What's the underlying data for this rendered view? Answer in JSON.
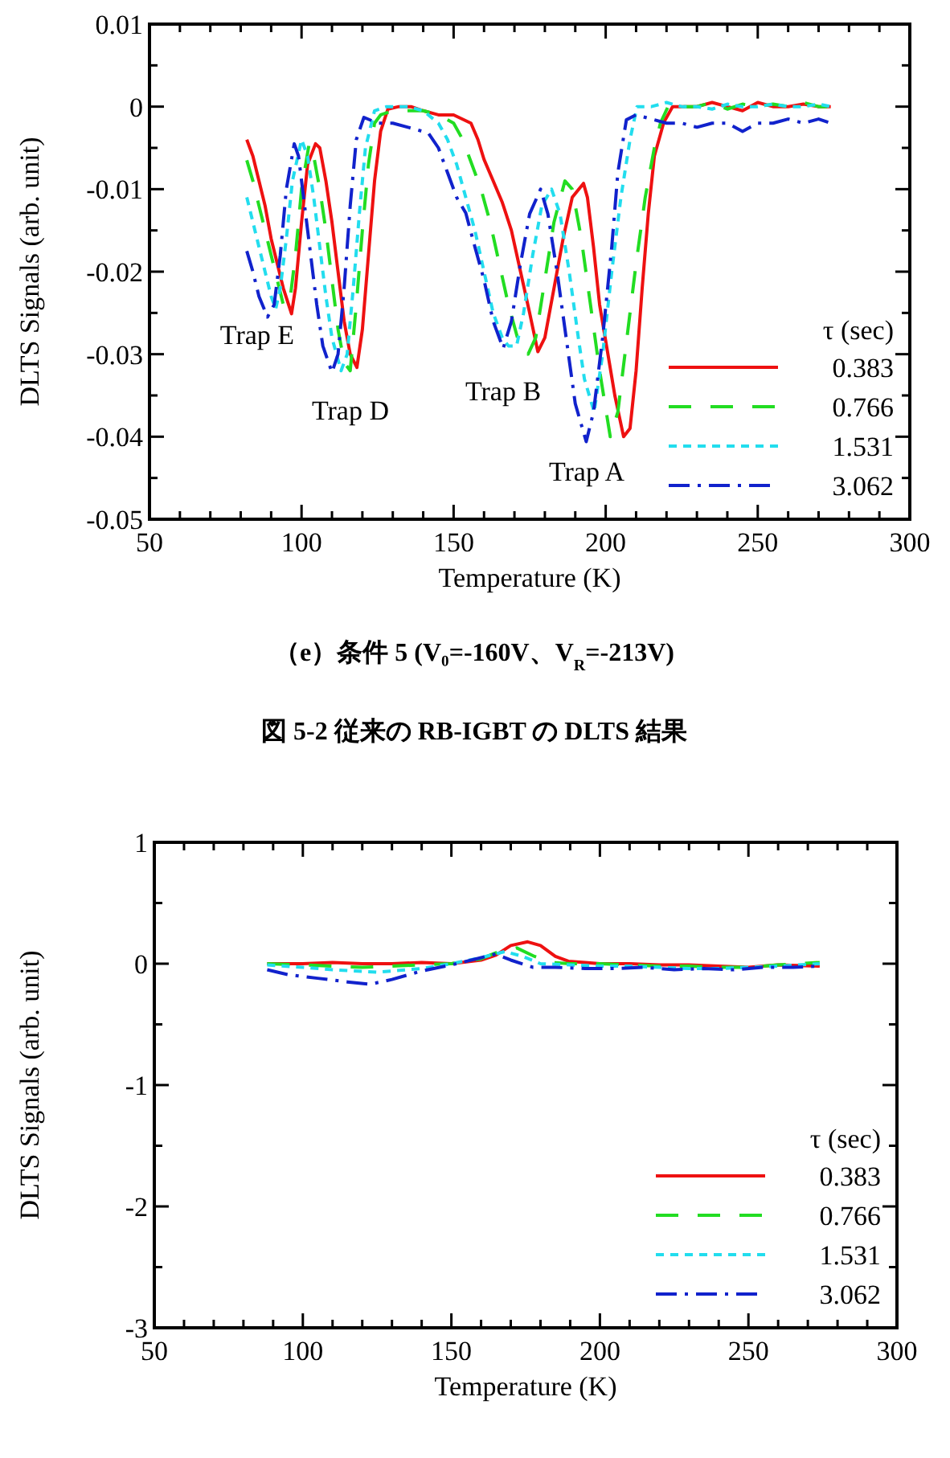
{
  "chart_data": [
    {
      "type": "line",
      "xlabel": "Temperature (K)",
      "ylabel": "DLTS Signals (arb. unit)",
      "legend_title": "τ (sec)",
      "legend": "bottom right",
      "xlim": [
        50,
        300
      ],
      "ylim": [
        -0.05,
        0.01
      ],
      "xticks": [
        50,
        {
          "value": 60,
          "label": null
        },
        {
          "value": 70,
          "label": null
        },
        {
          "value": 80,
          "label": null
        },
        {
          "value": 90,
          "label": null
        },
        100,
        {
          "value": 110,
          "label": null
        },
        {
          "value": 120,
          "label": null
        },
        {
          "value": 130,
          "label": null
        },
        {
          "value": 140,
          "label": null
        },
        150,
        {
          "value": 160,
          "label": null
        },
        {
          "value": 170,
          "label": null
        },
        {
          "value": 180,
          "label": null
        },
        {
          "value": 190,
          "label": null
        },
        200,
        {
          "value": 210,
          "label": null
        },
        {
          "value": 220,
          "label": null
        },
        {
          "value": 230,
          "label": null
        },
        {
          "value": 240,
          "label": null
        },
        250,
        {
          "value": 260,
          "label": null
        },
        {
          "value": 270,
          "label": null
        },
        {
          "value": 280,
          "label": null
        },
        {
          "value": 290,
          "label": null
        },
        300
      ],
      "yticks": [
        -0.05,
        {
          "value": -0.045,
          "label": null
        },
        -0.04,
        {
          "value": -0.035,
          "label": null
        },
        -0.03,
        {
          "value": -0.025,
          "label": null
        },
        -0.02,
        {
          "value": -0.015,
          "label": null
        },
        -0.01,
        {
          "value": -0.005,
          "label": null
        },
        0,
        {
          "value": 0.005,
          "label": null
        },
        0.01
      ],
      "annotations": [
        "Trap E",
        "Trap D",
        "Trap B",
        "Trap A",
        "（e）条件 5 (V₀=-160V、V$_{R}$=-213V)",
        "図 5-2 従来の RB-IGBT の DLTS 結果"
      ],
      "series": [
        {
          "name": "0.383",
          "color": "#ee1111",
          "line_style": "solid",
          "x": [
            82,
            84,
            86,
            88,
            90,
            92,
            94,
            96.7,
            98,
            100,
            102,
            104.6,
            106,
            108,
            110,
            112,
            114,
            116,
            118.2,
            120,
            122,
            124,
            126,
            128.4,
            132,
            136,
            140,
            145,
            150,
            155.7,
            158,
            160,
            163,
            166,
            169,
            172,
            175,
            177.7,
            180,
            183,
            186,
            189,
            192.7,
            194,
            196,
            198,
            200.6,
            203,
            205.9,
            208,
            210,
            212,
            214,
            216,
            219.1,
            222,
            226,
            230,
            235,
            240,
            245,
            250,
            255,
            260,
            265,
            270,
            274
          ],
          "values": [
            -0.004,
            -0.006,
            -0.009,
            -0.012,
            -0.016,
            -0.019,
            -0.022,
            -0.0251,
            -0.022,
            -0.014,
            -0.007,
            -0.0045,
            -0.005,
            -0.009,
            -0.014,
            -0.02,
            -0.026,
            -0.03,
            -0.0316,
            -0.027,
            -0.018,
            -0.009,
            -0.003,
            -0.0003,
            0,
            0,
            -0.0005,
            -0.001,
            -0.001,
            -0.002,
            -0.004,
            -0.0064,
            -0.009,
            -0.0116,
            -0.015,
            -0.02,
            -0.025,
            -0.0297,
            -0.028,
            -0.022,
            -0.016,
            -0.011,
            -0.0093,
            -0.011,
            -0.017,
            -0.024,
            -0.0297,
            -0.035,
            -0.04,
            -0.039,
            -0.032,
            -0.022,
            -0.013,
            -0.006,
            -0.0019,
            0,
            0,
            0,
            0.0005,
            0,
            -0.0005,
            0.0005,
            0,
            0,
            0.0003,
            0,
            0
          ]
        },
        {
          "name": "0.766",
          "color": "#22dd22",
          "line_style": "dashed",
          "x": [
            82,
            84,
            86,
            88,
            90,
            92,
            94,
            96,
            98,
            100,
            102.5,
            104,
            106,
            108,
            110,
            112,
            114,
            116,
            118,
            120,
            122,
            124,
            126,
            130,
            135,
            140,
            145,
            150,
            153,
            156,
            159,
            162,
            165,
            168,
            171,
            174.5,
            177,
            180,
            183,
            186.6,
            189,
            192,
            195,
            198,
            201.5,
            204,
            207,
            210,
            213,
            216,
            218,
            221,
            225,
            230,
            235,
            240,
            245,
            250,
            255,
            260,
            265,
            270,
            274
          ],
          "values": [
            -0.0065,
            -0.009,
            -0.012,
            -0.015,
            -0.018,
            -0.021,
            -0.024,
            -0.024,
            -0.018,
            -0.01,
            -0.0045,
            -0.006,
            -0.01,
            -0.015,
            -0.021,
            -0.027,
            -0.031,
            -0.032,
            -0.024,
            -0.015,
            -0.007,
            -0.002,
            -0.001,
            -0.0005,
            -0.0005,
            -0.0005,
            -0.001,
            -0.002,
            -0.004,
            -0.007,
            -0.01,
            -0.014,
            -0.019,
            -0.024,
            -0.028,
            -0.03,
            -0.028,
            -0.021,
            -0.014,
            -0.009,
            -0.01,
            -0.016,
            -0.024,
            -0.032,
            -0.04,
            -0.037,
            -0.028,
            -0.019,
            -0.011,
            -0.005,
            -0.002,
            0.0004,
            0,
            0,
            0.0005,
            -0.0003,
            0.0003,
            0,
            0.0003,
            0,
            0.0005,
            0,
            0
          ]
        },
        {
          "name": "1.531",
          "color": "#22ddee",
          "line_style": "dotted",
          "x": [
            82,
            84,
            86,
            88,
            90,
            91.5,
            93,
            95,
            97,
            100,
            102,
            104,
            106,
            108,
            110,
            113,
            115,
            117,
            119,
            121,
            124,
            128,
            135,
            140,
            145,
            148,
            151,
            154,
            157,
            160,
            163,
            166,
            168,
            170.7,
            173,
            176,
            179,
            182.2,
            185,
            188,
            191,
            193,
            196.2,
            199,
            202,
            205,
            208,
            210.3,
            215,
            220,
            225,
            230,
            235,
            240,
            245,
            250,
            255,
            260,
            265,
            270,
            274
          ],
          "values": [
            -0.011,
            -0.014,
            -0.017,
            -0.02,
            -0.023,
            -0.0245,
            -0.022,
            -0.016,
            -0.009,
            -0.004,
            -0.006,
            -0.011,
            -0.017,
            -0.023,
            -0.028,
            -0.032,
            -0.03,
            -0.022,
            -0.013,
            -0.005,
            -0.0005,
            0,
            0,
            -0.0005,
            -0.002,
            -0.004,
            -0.007,
            -0.011,
            -0.015,
            -0.02,
            -0.025,
            -0.028,
            -0.029,
            -0.029,
            -0.025,
            -0.018,
            -0.012,
            -0.01,
            -0.013,
            -0.02,
            -0.028,
            -0.033,
            -0.037,
            -0.03,
            -0.02,
            -0.011,
            -0.004,
            0,
            0,
            0.0005,
            0,
            0,
            -0.0003,
            0.0003,
            0,
            0,
            0.0003,
            0,
            0,
            0.0003,
            0
          ]
        },
        {
          "name": "3.062",
          "color": "#1122cc",
          "line_style": "dashdot",
          "x": [
            82,
            84,
            86,
            88.8,
            91,
            93,
            95,
            97.6,
            99,
            101,
            103,
            105,
            107,
            110,
            112,
            114,
            116,
            118,
            120.5,
            125,
            130,
            135,
            141.7,
            145,
            148,
            151,
            154,
            157,
            160,
            163,
            166.3,
            169,
            172,
            175,
            178.6,
            181,
            184,
            187,
            190,
            193.6,
            196,
            199,
            202,
            204,
            206.8,
            210,
            215,
            220,
            225,
            230,
            235,
            240,
            245,
            250,
            255,
            260,
            265,
            270,
            274
          ],
          "values": [
            -0.0175,
            -0.02,
            -0.023,
            -0.0255,
            -0.024,
            -0.018,
            -0.01,
            -0.0045,
            -0.006,
            -0.012,
            -0.018,
            -0.024,
            -0.029,
            -0.0322,
            -0.03,
            -0.022,
            -0.012,
            -0.004,
            -0.0013,
            -0.002,
            -0.002,
            -0.0025,
            -0.0032,
            -0.005,
            -0.008,
            -0.011,
            -0.0129,
            -0.017,
            -0.021,
            -0.026,
            -0.0293,
            -0.026,
            -0.019,
            -0.013,
            -0.01,
            -0.013,
            -0.02,
            -0.028,
            -0.036,
            -0.0406,
            -0.037,
            -0.028,
            -0.017,
            -0.008,
            -0.0016,
            -0.001,
            -0.0015,
            -0.002,
            -0.002,
            -0.0025,
            -0.002,
            -0.002,
            -0.003,
            -0.002,
            -0.002,
            -0.0015,
            -0.002,
            -0.0015,
            -0.002
          ]
        }
      ]
    },
    {
      "type": "line",
      "xlabel": "Temperature (K)",
      "ylabel": "DLTS Signals (arb. unit)",
      "legend_title": "τ (sec)",
      "legend": "bottom right",
      "xlim": [
        50,
        300
      ],
      "ylim": [
        -3,
        1
      ],
      "xticks": [
        50,
        {
          "value": 60,
          "label": null
        },
        {
          "value": 70,
          "label": null
        },
        {
          "value": 80,
          "label": null
        },
        {
          "value": 90,
          "label": null
        },
        100,
        {
          "value": 110,
          "label": null
        },
        {
          "value": 120,
          "label": null
        },
        {
          "value": 130,
          "label": null
        },
        {
          "value": 140,
          "label": null
        },
        150,
        {
          "value": 160,
          "label": null
        },
        {
          "value": 170,
          "label": null
        },
        {
          "value": 180,
          "label": null
        },
        {
          "value": 190,
          "label": null
        },
        200,
        {
          "value": 210,
          "label": null
        },
        {
          "value": 220,
          "label": null
        },
        {
          "value": 230,
          "label": null
        },
        {
          "value": 240,
          "label": null
        },
        250,
        {
          "value": 260,
          "label": null
        },
        {
          "value": 270,
          "label": null
        },
        {
          "value": 280,
          "label": null
        },
        {
          "value": 290,
          "label": null
        },
        300
      ],
      "yticks": [
        -3,
        {
          "value": -2.5,
          "label": null
        },
        -2,
        {
          "value": -1.5,
          "label": null
        },
        -1,
        {
          "value": -0.5,
          "label": null
        },
        0,
        {
          "value": 0.5,
          "label": null
        },
        1
      ],
      "series": [
        {
          "name": "0.383",
          "color": "#ee1111",
          "line_style": "solid",
          "x": [
            88,
            100,
            110,
            120,
            130,
            140,
            150,
            160,
            165,
            170,
            175.7,
            180,
            185,
            189.4,
            195,
            200,
            210,
            220,
            230,
            240,
            250,
            260,
            274
          ],
          "values": [
            0,
            0,
            0.01,
            0,
            0,
            0.01,
            0,
            0.03,
            0.07,
            0.15,
            0.18,
            0.15,
            0.06,
            0.02,
            0.01,
            0,
            0,
            -0.01,
            -0.01,
            -0.02,
            -0.03,
            -0.01,
            -0.02
          ]
        },
        {
          "name": "0.766",
          "color": "#22dd22",
          "line_style": "dashed",
          "x": [
            88,
            100,
            110,
            120,
            130,
            140,
            150,
            160,
            165,
            172,
            178,
            184,
            190,
            200,
            210,
            220,
            230,
            240,
            250,
            260,
            274
          ],
          "values": [
            0,
            -0.01,
            -0.02,
            -0.03,
            -0.02,
            -0.01,
            0,
            0.04,
            0.09,
            0.13,
            0.06,
            0.01,
            0,
            0,
            -0.01,
            -0.02,
            -0.02,
            -0.03,
            -0.03,
            -0.01,
            0.01
          ]
        },
        {
          "name": "1.531",
          "color": "#22ddee",
          "line_style": "dotted",
          "x": [
            88,
            100,
            110,
            125,
            140,
            150,
            160,
            168,
            174,
            180,
            190,
            200,
            210,
            220,
            230,
            240,
            250,
            260,
            274
          ],
          "values": [
            -0.01,
            -0.03,
            -0.05,
            -0.07,
            -0.04,
            0,
            0.05,
            0.1,
            0.06,
            0,
            -0.01,
            -0.02,
            -0.02,
            -0.03,
            -0.04,
            -0.04,
            -0.03,
            -0.02,
            0
          ]
        },
        {
          "name": "3.062",
          "color": "#1122cc",
          "line_style": "dashdot",
          "x": [
            88,
            95,
            105,
            115,
            122.5,
            130,
            140,
            150,
            160,
            164.9,
            170,
            177.5,
            185,
            195,
            205,
            215,
            225,
            235,
            245,
            255,
            265,
            274
          ],
          "values": [
            -0.05,
            -0.09,
            -0.12,
            -0.15,
            -0.17,
            -0.13,
            -0.06,
            -0.01,
            0.05,
            0.08,
            0.03,
            -0.03,
            -0.03,
            -0.04,
            -0.04,
            -0.03,
            -0.05,
            -0.04,
            -0.05,
            -0.03,
            -0.03,
            -0.02
          ]
        }
      ]
    }
  ]
}
